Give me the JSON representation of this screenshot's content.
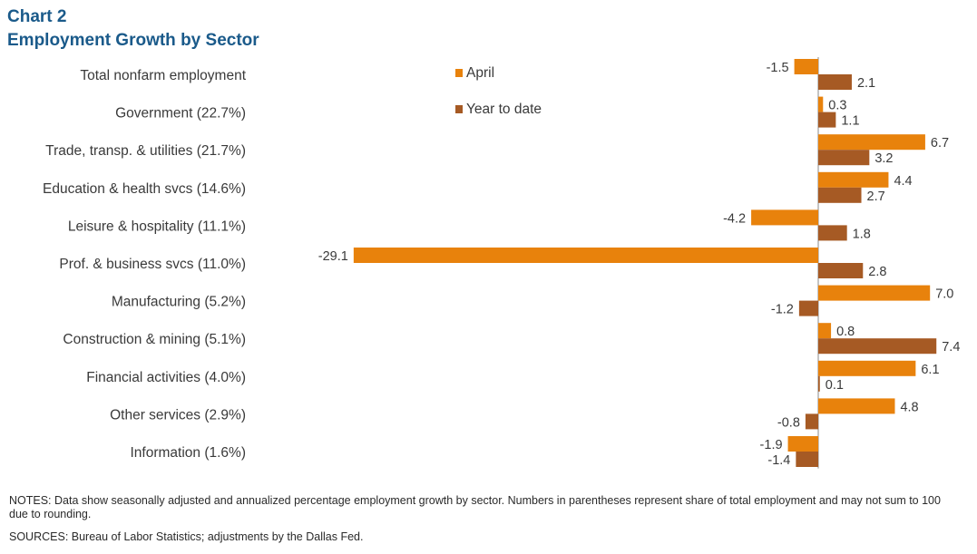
{
  "chart_number": "Chart 2",
  "title": "Employment  Growth by Sector",
  "notes": "NOTES:  Data show seasonally adjusted and annualized percentage employment  growth by sector. Numbers  in parentheses represent share of total employment and may not sum to 100 due to rounding.",
  "sources": "SOURCES:  Bureau of Labor Statistics;  adjustments by the Dallas Fed.",
  "colors": {
    "april": "#e8820c",
    "ytd": "#a65a24",
    "title": "#1a5a8a"
  },
  "chart_data": {
    "type": "bar",
    "orientation": "horizontal",
    "categories": [
      "Total nonfarm employment",
      "Government (22.7%)",
      "Trade, transp. & utilities (21.7%)",
      "Education & health svcs (14.6%)",
      "Leisure & hospitality (11.1%)",
      "Prof. & business svcs (11.0%)",
      "Manufacturing (5.2%)",
      "Construction & mining (5.1%)",
      "Financial activities (4.0%)",
      "Other services (2.9%)",
      "Information (1.6%)"
    ],
    "series": [
      {
        "name": "April",
        "values": [
          -1.5,
          0.3,
          6.7,
          4.4,
          -4.2,
          -29.1,
          7.0,
          0.8,
          6.1,
          4.8,
          -1.9
        ]
      },
      {
        "name": "Year to date",
        "values": [
          2.1,
          1.1,
          3.2,
          2.7,
          1.8,
          2.8,
          -1.2,
          7.4,
          0.1,
          -0.8,
          -1.4
        ]
      }
    ],
    "data_labels": [
      [
        "-1.5",
        "0.3",
        "6.7",
        "4.4",
        "-4.2",
        "-29.1",
        "7.0",
        "0.8",
        "6.1",
        "4.8",
        "-1.9"
      ],
      [
        "2.1",
        "1.1",
        "3.2",
        "2.7",
        "1.8",
        "2.8",
        "-1.2",
        "7.4",
        "0.1",
        "-0.8",
        "-1.4"
      ]
    ],
    "legend_position": "top-center",
    "grid": false
  }
}
